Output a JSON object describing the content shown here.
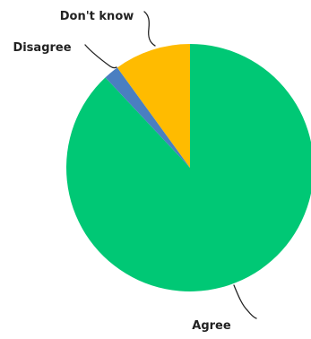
{
  "chart_data": {
    "type": "pie",
    "slices": [
      {
        "label": "Agree",
        "value": 88,
        "color": "#00c875"
      },
      {
        "label": "Disagree",
        "value": 2,
        "color": "#4a7fc1"
      },
      {
        "label": "Don't know",
        "value": 10,
        "color": "#ffbb00"
      }
    ],
    "title": "",
    "legend": "none",
    "labels": "outside-with-leader-lines",
    "start_angle": "12 o'clock",
    "direction": "clockwise"
  }
}
